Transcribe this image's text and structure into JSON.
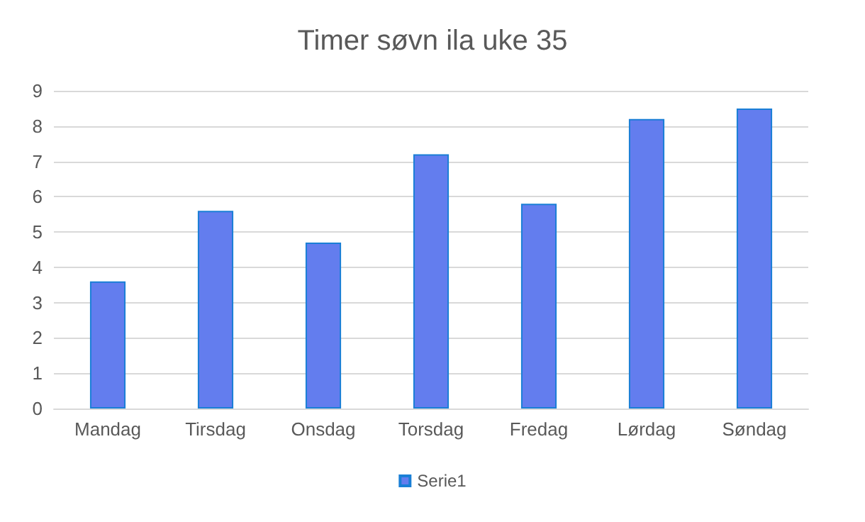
{
  "chart_data": {
    "type": "bar",
    "title": "Timer søvn ila uke 35",
    "categories": [
      "Mandag",
      "Tirsdag",
      "Onsdag",
      "Torsdag",
      "Fredag",
      "Lørdag",
      "Søndag"
    ],
    "series": [
      {
        "name": "Serie1",
        "color": "#637dee",
        "values": [
          3.6,
          5.6,
          4.7,
          7.2,
          5.8,
          8.2,
          8.5
        ]
      }
    ],
    "ylim": [
      0,
      9
    ],
    "yticks": [
      0,
      1,
      2,
      3,
      4,
      5,
      6,
      7,
      8,
      9
    ],
    "grid": "y",
    "legend": "bottom"
  }
}
